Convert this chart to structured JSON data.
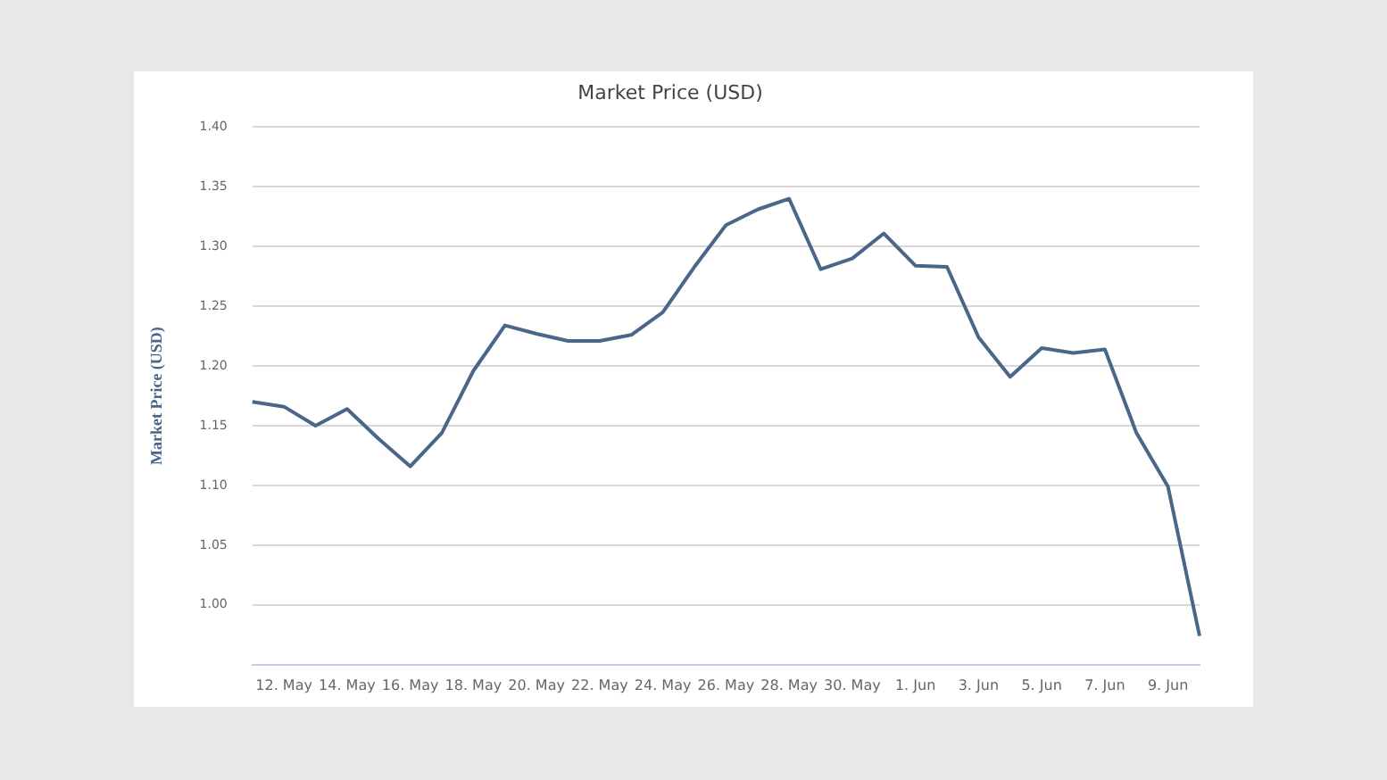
{
  "chart_data": {
    "type": "line",
    "title": "Market Price (USD)",
    "ylabel": "Market Price (USD)",
    "categories": [
      null,
      "12. May",
      null,
      "14. May",
      null,
      "16. May",
      null,
      "18. May",
      null,
      "20. May",
      null,
      "22. May",
      null,
      "24. May",
      null,
      "26. May",
      null,
      "28. May",
      null,
      "30. May",
      null,
      "1. Jun",
      null,
      "3. Jun",
      null,
      "5. Jun",
      null,
      "7. Jun",
      null,
      "9. Jun",
      null
    ],
    "series": [
      {
        "color": "#4a6689",
        "values": [
          1.17,
          1.166,
          1.15,
          1.164,
          1.139,
          1.116,
          1.144,
          1.196,
          1.234,
          1.227,
          1.221,
          1.221,
          1.226,
          1.245,
          1.283,
          1.318,
          1.331,
          1.34,
          1.281,
          1.29,
          1.311,
          1.284,
          1.283,
          1.224,
          1.191,
          1.215,
          1.211,
          1.214,
          1.144,
          1.099,
          0.974
        ]
      }
    ],
    "ylim": [
      0.95,
      1.4
    ],
    "yticks": [
      {
        "value": 1.0,
        "label": "1.00"
      },
      {
        "value": 1.05,
        "label": "1.05"
      },
      {
        "value": 1.1,
        "label": "1.10"
      },
      {
        "value": 1.15,
        "label": "1.15"
      },
      {
        "value": 1.2,
        "label": "1.20"
      },
      {
        "value": 1.25,
        "label": "1.25"
      },
      {
        "value": 1.3,
        "label": "1.30"
      },
      {
        "value": 1.35,
        "label": "1.35"
      },
      {
        "value": 1.4,
        "label": "1.40"
      }
    ],
    "grid": "y",
    "legend": false,
    "marker": "none",
    "line_style": "solid"
  }
}
